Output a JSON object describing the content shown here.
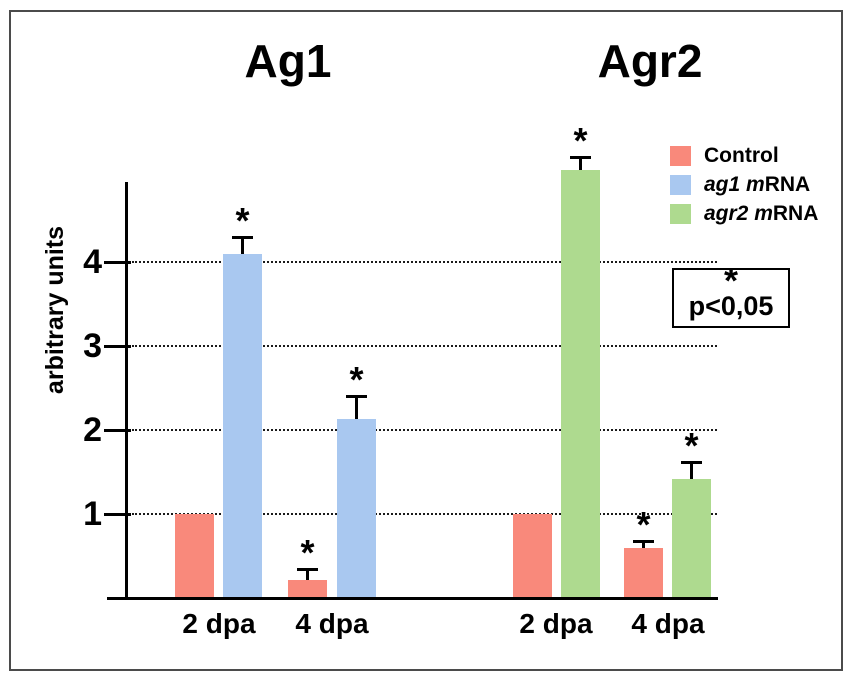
{
  "figure": {
    "significance_box": {
      "symbol": "*",
      "text": "p<0,05"
    }
  },
  "legend": {
    "items": [
      {
        "italic": "",
        "plain": "Control",
        "color": "#f9897b"
      },
      {
        "italic": "ag1 m",
        "plain": "RNA",
        "color": "#a9c8f0"
      },
      {
        "italic": "agr2 m",
        "plain": "RNA",
        "color": "#aeda8f"
      }
    ]
  },
  "chart_data": {
    "type": "bar",
    "ylabel": "arbitrary units",
    "yticks": [
      1,
      2,
      3,
      4
    ],
    "ylim": [
      0,
      5.3
    ],
    "grid": "horizontal-dotted",
    "legend_position": "top-right",
    "series_colors": {
      "Control": "#f9897b",
      "ag1 mRNA": "#a9c8f0",
      "agr2 mRNA": "#aeda8f"
    },
    "groups": [
      {
        "title": "Ag1",
        "pairs": [
          {
            "category": "2 dpa",
            "bars": [
              {
                "series": "Control",
                "value": 1.0,
                "error": null,
                "significant": false
              },
              {
                "series": "ag1 mRNA",
                "value": 4.1,
                "error": 0.2,
                "significant": true
              }
            ]
          },
          {
            "category": "4 dpa",
            "bars": [
              {
                "series": "Control",
                "value": 0.22,
                "error": 0.13,
                "significant": true
              },
              {
                "series": "ag1 mRNA",
                "value": 2.13,
                "error": 0.27,
                "significant": true
              }
            ]
          }
        ]
      },
      {
        "title": "Agr2",
        "pairs": [
          {
            "category": "2 dpa",
            "bars": [
              {
                "series": "Control",
                "value": 1.0,
                "error": null,
                "significant": false
              },
              {
                "series": "agr2 mRNA",
                "value": 5.1,
                "error": 0.15,
                "significant": true
              }
            ]
          },
          {
            "category": "4 dpa",
            "bars": [
              {
                "series": "Control",
                "value": 0.6,
                "error": 0.08,
                "significant": true
              },
              {
                "series": "agr2 mRNA",
                "value": 1.42,
                "error": 0.2,
                "significant": true
              }
            ]
          }
        ]
      }
    ]
  }
}
